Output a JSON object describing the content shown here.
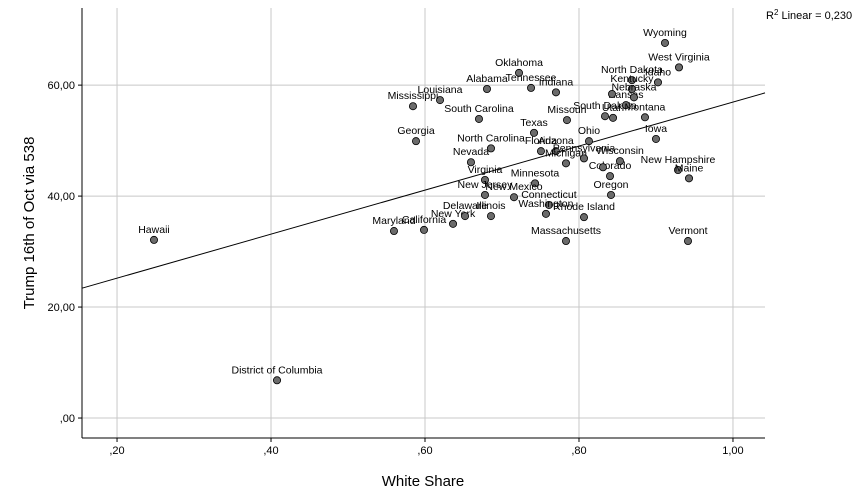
{
  "chart_data": {
    "type": "scatter",
    "x_label": "White Share",
    "y_label": "Trump 16th of Oct via 538",
    "annotation": [
      "R",
      "2",
      " Linear = 0,230"
    ],
    "xlim": [
      0.1545,
      1.0416
    ],
    "ylim": [
      -3.6,
      73.9
    ],
    "xticks": [
      {
        "value": 0.2,
        "label": ",20"
      },
      {
        "value": 0.4,
        "label": ",40"
      },
      {
        "value": 0.6,
        "label": ",60"
      },
      {
        "value": 0.8,
        "label": ",80"
      },
      {
        "value": 1.0,
        "label": "1,00"
      }
    ],
    "yticks": [
      {
        "value": 0,
        "label": ",00"
      },
      {
        "value": 20,
        "label": "20,00"
      },
      {
        "value": 40,
        "label": "40,00"
      },
      {
        "value": 60,
        "label": "60,00"
      }
    ],
    "grid": true,
    "color": "#6b6b6b",
    "fit_line": {
      "x": [
        0.1545,
        1.0416
      ],
      "y": [
        23.4,
        58.6
      ]
    },
    "point_labels": [
      "Wyoming",
      "West Virginia",
      "North Dakota",
      "Idaho",
      "Kentucky",
      "Oklahoma",
      "Tennessee",
      "Indiana",
      "Alabama",
      "Louisiana",
      "Mississippi",
      "South Carolina",
      "Georgia",
      "North Carolina",
      "Nevada",
      "Virginia",
      "New Jersey",
      "Texas",
      "Florida",
      "Arizona",
      "Michigan",
      "Missouri",
      "South Dakota",
      "Utah",
      "Ohio",
      "Kansas",
      "Nebraska",
      null,
      "Montana",
      "Iowa",
      "Pennsylvania",
      "Wisconsin",
      "Colorado",
      null,
      "Minnesota",
      "New Hampshire",
      "Maine",
      "Oregon",
      "New Mexico",
      "Connecticut",
      "Illinois",
      "New York",
      "Delaware",
      "Washington",
      "Rhode Island",
      "Massachusetts",
      "Maryland",
      "California",
      "Vermont",
      "Hawaii",
      "District of Columbia"
    ],
    "x": [
      0.9117,
      0.9299,
      0.8688,
      0.9026,
      0.8688,
      0.7221,
      0.7377,
      0.7701,
      0.6805,
      0.6195,
      0.5844,
      0.6701,
      0.5883,
      0.6857,
      0.6597,
      0.6779,
      0.6779,
      0.7416,
      0.7506,
      0.7701,
      0.7831,
      0.7844,
      0.8338,
      0.8442,
      0.813,
      0.861,
      0.8714,
      0.8429,
      0.8857,
      0.9,
      0.8065,
      0.8532,
      0.8403,
      0.8312,
      0.7429,
      0.9286,
      0.9429,
      0.8416,
      0.7156,
      0.761,
      0.6857,
      0.6364,
      0.652,
      0.7571,
      0.8065,
      0.7831,
      0.5597,
      0.5987,
      0.9416,
      0.248,
      0.4078
    ],
    "values": [
      67.6,
      63.2,
      60.9,
      60.5,
      59.3,
      62.2,
      59.5,
      58.7,
      59.3,
      57.3,
      56.2,
      53.9,
      49.9,
      48.6,
      46.1,
      42.9,
      40.2,
      51.4,
      48.1,
      48.1,
      45.9,
      53.7,
      54.4,
      54.1,
      49.9,
      56.4,
      57.8,
      58.4,
      54.2,
      50.3,
      46.8,
      46.3,
      43.6,
      45.2,
      42.3,
      44.7,
      43.2,
      40.2,
      39.8,
      38.4,
      36.4,
      35.0,
      36.4,
      36.8,
      36.2,
      31.9,
      33.7,
      33.9,
      31.9,
      32.1,
      6.8
    ]
  }
}
